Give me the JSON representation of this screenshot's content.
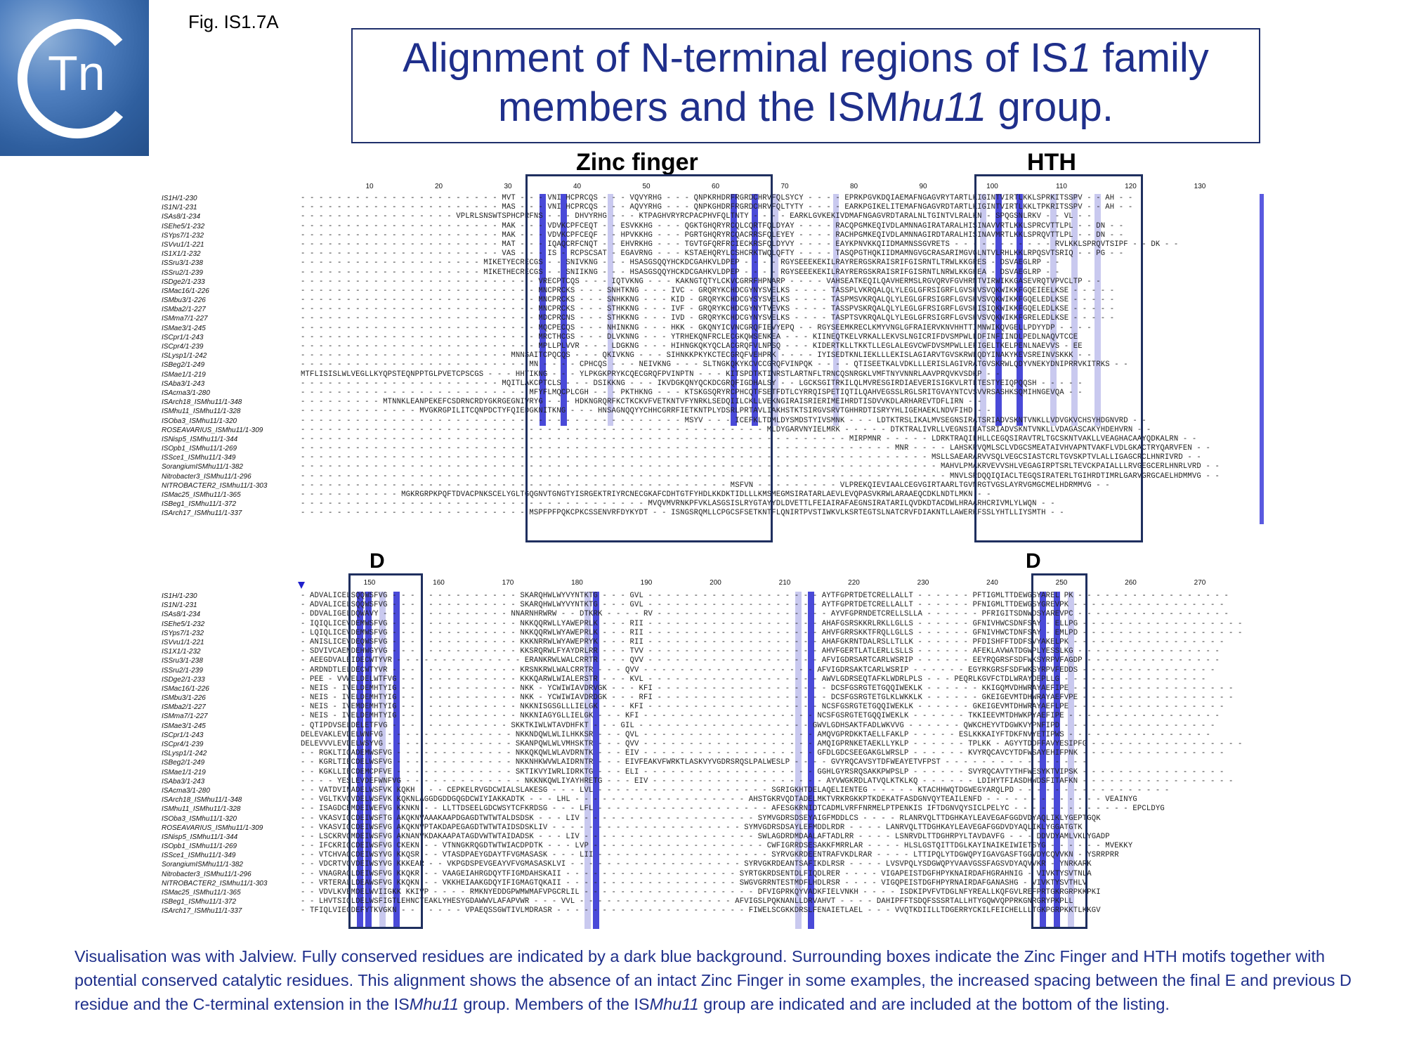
{
  "figure_label": "Fig. IS1.7A",
  "logo": {
    "text": "Tn",
    "colors": {
      "bg": "#4f7fbf",
      "ring": "#ffffff"
    }
  },
  "title": {
    "line1_a": "Alignment of N-terminal regions of IS",
    "line1_b": "1",
    "line1_c": " family",
    "line2_a": "members and the ISM",
    "line2_b": "hu11",
    "line2_c": " group."
  },
  "motifs": {
    "zinc_finger": "Zinc finger",
    "hth": "HTH",
    "d1": "D",
    "d2": "D"
  },
  "colors": {
    "box": "#1f2f5f",
    "title": "#1f2f8b",
    "conserved_dark": "#4a4ad8",
    "conserved_light": "#c9c9ef"
  },
  "top_block": {
    "ruler": [
      "10",
      "20",
      "30",
      "40",
      "50",
      "60",
      "70",
      "80",
      "90",
      "100",
      "110",
      "120",
      "130"
    ],
    "rows": [
      {
        "name": "IS1H/1-230",
        "seq": "- - - - - - - - - - - - - - - - - - - - - - MVT - - - VNI HCPRCQS - - - VQVYRHG - - - QNPKRHDRFRGRDCHRVFQLSYCY - - - - EPRKPGVKDQIAEMAFNGAGVRYTARTLKIGINTVIRTLKKLSPRKITSSPV - - AH - -"
      },
      {
        "name": "IS1N/1-231",
        "seq": "- - - - - - - - - - - - - - - - - - - - - - MAS - - - VNI HCPRCQS - - - AQVYRHG - - - QNPKGHDRFRGRDCHRVFQLTYTY - - - - EARKPGIKELITEMAFNGAGVRDTARTLKIGINTVIRTLKKLTPKRITSSPV - - AH - -"
      },
      {
        "name": "ISAs8/1-234",
        "seq": "- - - - - - - - - - - - - - - - - VPLRLSNSWTSPHCPRFNS - - - DHVYRHG - - - KTPAGHVRYRCPACPHVFQLTNTY - - - - EARKLGVKEKIVDMAFNGAGVRDTARALNLTGINTVLRALKN - SPQGSNLRKV - - VL - -"
      },
      {
        "name": "ISEhe5/1-232",
        "seq": "- - - - - - - - - - - - - - - - - - - - - - MAK - - - VDVKCPFCEQT - - ESVKKHG - - - QGKTGHQRYRCQLCQRTFQLDYAY - - - - RACQPGMKEQIVDLAMNNAGIRATARALHISINAVVRTLKKLSPRCVTTLPL - - DN - -"
      },
      {
        "name": "ISYps7/1-232",
        "seq": "- - - - - - - - - - - - - - - - - - - - - - MAK - - - VDVKCPFCEQF - - HPVKKHG - - - PGRTGHQRYRCQACRRSFQLEYEY - - - - RACHPGMKEQIVDLAMNNAGIRDTARALHISINAVMRTLKKLSPRQVTTLPL - - DN - -"
      },
      {
        "name": "ISVvu1/1-221",
        "seq": "- - - - - - - - - - - - - - - - - - - - - - MAT - - - IQAQCRFCNQT - - EHVRKHG - - - TGVTGFQRFRCIECKRSFQLDYVY - - - - EAYKPNVKKQIIDMAMNSSGVRETS - - - - - - - - - - - RVLKKLSPRQVTSIPF - - DK - -"
      },
      {
        "name": "IS1X1/1-232",
        "seq": "- - - - - - - - - - - - - - - - - - - - - - VAS - - - IS - RCPSCSAT - EGAVRNG - - - KSTAEHQRYLCSHCRKTWQLQFTY - - - - TASQPGTHQKIIDMAMNGVGCRASARIMGVGLNTVLRHLKKLRPQSVTSRIQ - - PG - -"
      },
      {
        "name": "ISSru3/1-238",
        "seq": "- - - - - - - - - - - - - - - - - - - - MIKETYECRECGS - - SNIVKNG - - - HSASGSQQYHCKDCGAHKVLDPEP - - - - RGYSEEEKEKILRAYRERGSKRAISRIFGISRNTLTRWLKKGRES - DSVAEGLRP - -"
      },
      {
        "name": "ISSru2/1-239",
        "seq": "- - - - - - - - - - - - - - - - - - - - MIKETHECRECGS - - SNIIKNG - - - HSASGSQQYHCKDCGAHKVLDPEP - - - - RGYSEEEKEKILRAYRERGSKRAISRIFGISRNTLNRWLKKGHEA - DSVAEGLRP - -"
      },
      {
        "name": "ISDge2/1-233",
        "seq": "- - - - - - - - - - - - - - - - - - - - - - - - - - VRECPTCQS - - - IQTVKNG - - - KAKNGTQTYLCKVCGRRFHPNARP - - - - VAHSEATKEQILQAVHERMSLRGVQRVFGVHRNTVIRWIKKGASEVRQTVPVCLTP - -"
      },
      {
        "name": "ISMac16/1-226",
        "seq": "- - - - - - - - - - - - - - - - - - - - - - - - - - MNCPRCKS - - - SNHTKNG - - - IVC - GRQRYKCHDCGYNYSVELKS - - - - TASSPLVKRQALQLYLEGLGFRSIGRFLGVSHVSVQKWIKKFGQEIEELKSE - - - - -"
      },
      {
        "name": "ISMbu3/1-226",
        "seq": "- - - - - - - - - - - - - - - - - - - - - - - - - - MNCPRCKS - - - SNHKKNG - - - KID - GRQRYKCHDCGYSYSVELKS - - - - TASPMSVKRQALQLYLEGLGFRSIGRFLGVSHVSVQKWIKKFGQELEDLKSE - - - - -"
      },
      {
        "name": "ISMba2/1-227",
        "seq": "- - - - - - - - - - - - - - - - - - - - - - - - - - MNCPRCKS - - - STHKKNG - - - IVF - GRQRYKCHDCGYNYTVEVKS - - - - TASSPVSKRQALQLYLEGLGFRSIGRFLGVSHISIQKWIKKFGQELEDLKSE - - - - -"
      },
      {
        "name": "ISMma7/1-227",
        "seq": "- - - - - - - - - - - - - - - - - - - - - - - - - - MDCPRCNS - - - STHKKNG - - - IVD - GRQRYKCHDCGYNYSVELKS - - - - TASPTSVKRQALQLYLEGLGFRSIGRFLGVSHVSVQKWIKKFGRELEDLKSE - - - - -"
      },
      {
        "name": "ISMae3/1-245",
        "seq": "- - - - - - - - - - - - - - - - - - - - - - - - - - MQCPECQS - - - NHINKNG - - - HKK - GKQNYICVNCGRQFIEVYEPQ - - RGYSEEMKRECLKMYVNGLGFRAIERVKNVHHTTIMNWIKQVGELLPDYYDP - - - -"
      },
      {
        "name": "ISCpr1/1-243",
        "seq": "- - - - - - - - - - - - - - - - - - - - - - - - - - MRCTHCGS - - - DLVKNNG - - - YTRHEKQNFRCLECGKQWSENKEA - - - KIINEQTKELVRKALLEKVSLNGICRIFDVSMPWLLDFINFIINDLPEDLNAQVTCCE"
      },
      {
        "name": "ISCpr4/1-239",
        "seq": "- - - - - - - - - - - - - - - - - - - - - - - - - - MPLLPLVVR - - - LDGKNG - - - HIHNGKQKYQCLACGRQFVLNPSQ - - - KIDERTKLLTKKTLLEGLALEGVCWFDVSMPWLLEFIGELTKELPENLNAEVVS - EE"
      },
      {
        "name": "ISLysp1/1-242",
        "seq": "- - - - - - - - - - - - - - - - - - - - - - - MNNSAITCPQCQS - - - QKIVKNG - - - SIHNKKPKYKCTECGRQFVEHPRK - - - - IYISEDTKNLIEKLLLEKISLAGIARVTGVSKRWLQDYINAKYKEVSREINVSKKK - -"
      },
      {
        "name": "ISBeg2/1-249",
        "seq": "- - - - - - - - - - - - - - - - - - - - - - - - - MN - - - - CPHCQS - - - NEIVKNG - - - SLTNGKQKYKCVCCGRQFVINPQK - - - - QTISEETKALVDKLLLERISLAGIVRATGVSKRWLQDYVNEKYDNIPRRVKITRKS - -"
      },
      {
        "name": "ISMae1/1-219",
        "seq": "MTFLISISLWLVEGLLKYQPSTEQNPPTGLPVETCPSCGS - - - HHTIKNG - - - YLPKGKPRYKCQECGRQFPVINPTN - - - KITSPDTKTINRSTLARTNFLTRNCQSNRGKLVMFTNYVNNRLAAVPRQVKVSDKP - -"
      },
      {
        "name": "ISAba3/1-243",
        "seq": "- - - - - - - - - - - - - - - - - - - - - - MQITLAKCPTCLS - - - DSIKKNG - - - IKVDGKQNYQCKDCGRQFIGDHALSY - - LGCKSGITRKILQLMVRESGIRDIAEVERISIGKVLRTLTESTYEIQPQQSH - - - - -"
      },
      {
        "name": "ISAcma3/1-280",
        "seq": "- - - - - - - - - - - - - - - - - - - - - - - - - MFYFLMQCPLCGH - - - PKTHKNG - - - KTSKGSQRYRCPHCQTFSETFDTLCYRRQISPETIQTILQAHVEGSSLRGLSRITGVAYNTCVSVVRSASHKSQMIHNGEVQA - -"
      },
      {
        "name": "ISArch18_ISMhu11/1-348",
        "seq": "- - - - - - - - - MTNNKLEANPEKEFCSDRNCRDYGKRGEGNIVRYG - - - HDKNGRQRFKCTKCKVFVETKNTVFYNRKLSEDQIILCKLLVEKNGIRAISRIERIMEIHRDTISDVVKDLARHAREVTDFLIRN - -"
      },
      {
        "name": "ISMhu11_ISMhu11/1-328",
        "seq": "- - - - - - - - - - - - - MVGKRGPILITCQNPDCTYFQIEDGKNITKNG - - - HNSAGNQQYYCHHCGRRFIETKNTPLYDSRLPRTAVLIAKHSTKTSIRGVSRVTGHHRDTISRYYHLIGEHAEKLNDVFIHD - -"
      },
      {
        "name": "ISOba3_ISMhu11/1-320",
        "seq": "- - - - - - - - - - - - - - - - - - - - - - - - - - - - - - - - - - - - - - - - - - MSYV - - - ICEFKLTDMLDYSMDSTYIVSMNK - - - LDTKTRSLIKALMVSEGNSIRATSRIADVSKNTVNKLLVDVGKVCHSYHDGNVRD - -"
      },
      {
        "name": "ROSEAVARIUS_ISMhu11/1-309",
        "seq": "- - - - - - - - - - - - - - - - - - - - - - - - - - - - - - - - - - - - - - - - - - - - - - - - - - - MLDYGARVNYIELMRK - - - - - DTKTRALIVRLLVEGNSIRATSRIADVSKNTVNKLLVDAGASCAKYHDEHVRN - -"
      },
      {
        "name": "ISNisp5_ISMhu11/1-344",
        "seq": "- - - - - - - - - - - - - - - - - - - - - - - - - - - - - - - - - - - - - - - - - - - - - - - - - - - - - - - - - - - - MIRPMNR - - - - - LDRKTRAQILHLLCEGQSIRAVTRLTGCSKNTVAKLLVEAGHACAAYQDKALRN - -"
      },
      {
        "name": "ISOpb1_ISMhu11/1-269",
        "seq": "- - - - - - - - - - - - - - - - - - - - - - - - - - - - - - - - - - - - - - - - - - - - - - - - - - - - - - - - - - - - - - - - - MNR - - - - LAHSKRVQMLSCLVDGCSMEATAIVHVAPNTVAKFLVDLGKACTRYQARVFEN - -"
      },
      {
        "name": "ISSce1_ISMhu11/1-349",
        "seq": "- - - - - - - - - - - - - - - - - - - - - - - - - - - - - - - - - - - - - - - - - - - - - - - - - - - - - - - - - - - - - - - - - - - - - MSLLSAEARARVVSQLVEGCSIASTCRLTGVSKPTVLALLIGAGCRCLHNRIVRD - -"
      },
      {
        "name": "SorangiumISMhu11/1-382",
        "seq": "- - - - - - - - - - - - - - - - - - - - - - - - - - - - - - - - - - - - - - - - - - - - - - - - - - - - - - - - - - - - - - - - - - - - - - MAHVLPMAKRVEVVSHLVEGAGIRPTSRLTEVCKPAIALLLRVGEGCERLHNRLVRD - -"
      },
      {
        "name": "Nitrobacter3_ISMhu11/1-296",
        "seq": "- - - - - - - - - - - - - - - - - - - - - - - - - - - - - - - - - - - - - - - - - - - - - - - - - - - - - - - - - - - - - - - - - - - - - - - MNVLSRDQQIQIACLTEGQSIRATERLTGIHRDTIMRLGARVGRGCAELHDMMVG - -"
      },
      {
        "name": "NITROBACTER2_ISMhu11/1-303",
        "seq": "- - - - - - - - - - - - - - - - - - - - - - - - - - - - - - - - - - - - - - - - - - - - - - - MSFVN - - - - - - - - - VLPREKQIEVIAALCEGVGIRTAARLTGVNRGTVGSLAYRVGMGCMELHDRMMVG - -"
      },
      {
        "name": "ISMac25_ISMhu11/1-365",
        "seq": "- - - - - - - - - - - MGKRGRPKPQFTDVACPNKSCELYGLTGQGNVTGNGTYISRGEKTRIYRCNECGKAFCDHTGTFYHDLKKDKTIDLLLKMSMEGMSIRATARLAEVLEVQPASVKRWLARAAEQCDKLNDTLMKN - -"
      },
      {
        "name": "ISBeg1_ISMhu11/1-372",
        "seq": "- - - - - - - - - - - - - - - - - - - - - - - - - - - - - - - - - - - - - - MVQVMVRNKPFVKLASGSISLRYGTAYYDLDVETTLFEIAIRAFAEGNSIRATARILQVDKDTACDWLHRAARHCRIVMLYLWQN - -"
      },
      {
        "name": "ISArch17_ISMhu11/1-337",
        "seq": "- - - - - - - - - - - - - - - - - - - - - - - - - MSPFPFPQKCPKCSSENVRFDYKYDT - - ISNGSRQMLLCPGCSFSETKNTFLQNIRTPVSTIWKVLKSRTEGTSLNATCRVFDIAKNTLLAWERKFSSLYHTLLIYSMTH - -"
      }
    ]
  },
  "bottom_block": {
    "ruler": [
      "150",
      "160",
      "170",
      "180",
      "190",
      "200",
      "210",
      "220",
      "230",
      "240",
      "250",
      "260",
      "270"
    ],
    "rows": [
      {
        "name": "IS1H/1-230",
        "seq": "- ADVALICELSQQWSFVG - - - - - - - - - - - - - - SKARQHWLWYVYNTKTG - - - GVL - - - - - - - - - - - - - - - - - - - AYTFGPRTDETCRELLALLT - - - - - - PFTIGMLTTDEWGSYAREL PK - - - - - - - - - - - - - - - - -"
      },
      {
        "name": "IS1N/1-231",
        "seq": "- ADVALICELSQQWSFVG - - - - - - - - - - - - - - SKARQHWLWYVYNTKTG - - - GVL - - - - - - - - - - - - - - - - - - - AYTFGPRTDETCRELLALLT - - - - - - PFNIGMLTTDEWGSYGREVPK - - - - - - - - - - - - - - - - -"
      },
      {
        "name": "ISAs8/1-234",
        "seq": "- DDVALIGELDQWAVY - - - - - - - - - - - - - - NNARNHRWRW - - DTKRK - - - - RV - - - - - - - - - - - - - - - - - - - AYVFGPRNDETCRELLSLLA - - - - - - PFRIGITSDNWDSYAREVPC - - - - - - - - - - - - - - - - -"
      },
      {
        "name": "ISEhe5/1-232",
        "seq": "- IQIQLICEVDEMWSFVG - - - - - - - - - - - - - - NKKQQRWLLYAWEPRLK - - - RII - - - - - - - - - - - - - - - - - - - AHAFGSRSKKRLRKLLGLLS - - - - - - GFNIVHWCSDNFSAY - ELLPG - - - - - - - - - - - - - - - - - -"
      },
      {
        "name": "ISYps7/1-232",
        "seq": "- LQIQLICEVDEMWSFVG - - - - - - - - - - - - - - NKKQQRWLWYAWEPRLK - - - RII - - - - - - - - - - - - - - - - - - - AHVFGRRSKKTFRQLLGLLS - - - - - - GFNIVHWCTDNFSAY - EMLPD - - - - - - - - - - - - - - - - - -"
      },
      {
        "name": "ISVvu1/1-221",
        "seq": "- ANISLICEVDEQWSFVG - - - - - - - - - - - - - - KKKNRRWLWYAWEPRYK - - - RII - - - - - - - - - - - - - - - - - - - AHAFGKRNTDALRSLLTLLK - - - - - - PFDISHFFTDDFSVYAKELPK - - - - - - - - - - - - - - - - -"
      },
      {
        "name": "IS1X1/1-232",
        "seq": "- SDVIVCAEMDEHWGYVG - - - - - - - - - - - - - - KKSRQRWLFYAYDRLRR - - - TVV - - - - - - - - - - - - - - - - - - - AHVFGERTLATLERLLSLLS - - - - - - AFEKLAVWATDGWPLYESSLKG - - - - - - - - - - - - - - - -"
      },
      {
        "name": "ISSru3/1-238",
        "seq": "- AEEGDVALEIDECWTYVR - - - - - - - - - - - - - - ERANKRWLWALCRRTR - - - QVV - - - - - - - - - - - - - - - - - - - AFVIGDRSARTCARLWSRIP - - - - - - EEYRQGRSFSDFWKSYRPVFAGDP - - - - - - - - - - - - - - -"
      },
      {
        "name": "ISSru2/1-239",
        "seq": "- ARDNDTLELDECWTYVR - - - - - - - - - - - - - - KRSNKRWLWALCRRTR - - - QVV - - - - - - - - - - - - - - - - - - - AFVIGDRSAKTCARLWSRIP - - - - - - EGYRKGRSFSDFWKSYRPVFEDDS - - - - - - - - - - - - - - -"
      },
      {
        "name": "ISDge2/1-233",
        "seq": "- PEE - VVWELDELWTFVG - - - - - - - - - - - - - KKKQARWLWIALERSTR - - - KVL - - - - - - - - - - - - - - - - - - - AWVLGDRSEQTAFKLWDRLPLS - - - PEQRLKGVFCTDLWRAYDEPLLG - - - - - - - - - - - - - - - -"
      },
      {
        "name": "ISMac16/1-226",
        "seq": "- NEIS - IVELDEMHTYIG - - - - - - - - - - - - - NKK - YCWIWIAVDRVGK - - - KFI - - - - - - - - - - - - - - - - - - - DCSFGSRGTETGQQIWEKLK - - - - - - KKIGQMVDHWRAYAEFIPE - - - - - - - - - - - - - - - - - -"
      },
      {
        "name": "ISMbu3/1-226",
        "seq": "- NEIS - IVELDEMHTYIG - - - - - - - - - - - - - NKK - YCWIWIAVDRDGK - - - RFI - - - - - - - - - - - - - - - - - - - DCSFGSRGTETGLKLWKKLK - - - - - - GKEIGEVMTDHWRAYAEFVPE - - - - - - - - - - - - - - - - -"
      },
      {
        "name": "ISMba2/1-227",
        "seq": "- NEIS - IVEMDEMHTYIG - - - - - - - - - - - - - NKKNISGSGLLLIELGK - - - KFI - - - - - - - - - - - - - - - - - - - NCSFGSRGTETGQQIWEKLK - - - - - - GKEIGEVMTDHWRAYAEFLPE - - - - - - - - - - - - - - - - -"
      },
      {
        "name": "ISMma7/1-227",
        "seq": "- NEIS - IVELDEMHTYIG - - - - - - - - - - - - - NKKNIAGYGLLIELGK - - - KFI - - - - - - - - - - - - - - - - - - - NCSFGSRGTETGQQIWEKLK - - - - - - TKKIEEVMTDHWKPYAEFIPE - - - - - - - - - - - - - - - - -"
      },
      {
        "name": "ISMae3/1-245",
        "seq": "- QTIPDVSELDELETFVG - - - - - - - - - - - - - SKKTKIWLWTAVDHFKT - - - GIL - - - - - - - - - - - - - - - - - - - GWVLGDHSAKTFADLWKVVG - - - - - - QWKCHEYVTDGWKVYPNFIPD - - - - - - - - - - - - - - - - -"
      },
      {
        "name": "ISCpr1/1-243",
        "seq": "DELEVAKLEVDELWNFVG - - - - - - - - - - - - - - NKKNDQWLWLILHKKSR - - - QVL - - - - - - - - - - - - - - - - - - - AMQVGPRDKKTAELLFAKLP - - - - - ESLKKKAIYFTDKFNVYETIPWS - - - - - - - - - - - - - - - -"
      },
      {
        "name": "ISCpr4/1-239",
        "seq": "DELEVVVLEVDELWSYVG - - - - - - - - - - - - - - SKANPQWLWLVMHSKTR - - - QVV - - - - - - - - - - - - - - - - - - - AMQIGPRNKETAEKLLYKLP - - - - - - TPLKK - AGYYTDDFFAVYESIPFG - - - - - - - - - - - - - - - - -"
      },
      {
        "name": "ISLysp1/1-242",
        "seq": "- - RGKLTIQADEMWSFVG - - - - - - - - - - - - - NKKQKQWLWLAVDRNTK - - - EIV - - - - - - - - - - - - - - - - - - - GFDLGDCSEEGAKGLWRSLP - - - - - - KVYRQCAVCYTDFWSAYEHIFPNK - - - - - - - - - - - - - - - -"
      },
      {
        "name": "ISBeg2/1-249",
        "seq": "- - KGRLTIECDELWSFVG - - - - - - - - - - - - - NKKNHKWVWLAIDRNTR - - - EIVFEAKVFWRKTLASKVYVGDRSRQSLPALWESLP - - - - GVYRQCAVSYTDFWEAYETVFPST - - - - - - - - - - - - - - - -"
      },
      {
        "name": "ISMae1/1-219",
        "seq": "- - KGKLLIECDEMCPFVE - - - - - - - - - - - - - SKTIKVYIWRLIDRKTG - - - ELI - - - - - - - - - - - - - - - - - - - GGHLGYRSRQSAKKPWPSLP - - - - - - SVYRQCAVTYTHFWESYKTVIPSK - - - - - - - - - - - - - - - -"
      },
      {
        "name": "ISAba3/1-243",
        "seq": "- - - - YESLEVDEFWNFVG - - - - - - - - - - - - - NKKNKQWLIYAYHRETG - - - EIV - - - - - - - - - - - - - - - - - - - AYVWGKRDLATVQLKTKLKQ - - - - - - LDIHYTFIASDHWDSFITAFKN - - - - - - - - - - - - - - - - -"
      },
      {
        "name": "ISAcma3/1-280",
        "seq": "- - VATDVINADELWSFVK KQKH - - - CEPKELRVGDCWIALSLAKESG - - - LVL - - - - - - - - - - - - - - - - - - - SGRIGKHTDELAQELIENTEG - - - - - KTACHHWQTDGWEGYARQLPD - - - - - - - - - - - - - - - - -"
      },
      {
        "name": "ISArch18_ISMhu11/1-348",
        "seq": "- - VGLTKVQVDELWSFVK KQKNLAGGDGDDGQGDCWIYIAKKADTK - - - LHL - - - - - - - - - - - - - - - - - - - AHSTGKRVQDTADELMKTVRKRGKKPTKDEKATFASDGNVQYTEAILENFD - - - - - - - - - - - - - VEAINYG"
      },
      {
        "name": "ISMhu11_ISMhu11/1-328",
        "seq": "- - ISAGDCEMDEIWEFVG KKNKN - - LLTTDSEELGDCWSYTCFKRDSG - - - LFL - - - - - - - - - - - - - - - - - - - AFESGKRNIDTCADMLVRFFNRMELPTPENKIS IFTDGNVQYSICLPELYC - - - - - - - - - - - - - EPCLDYG"
      },
      {
        "name": "ISOba3_ISMhu11/1-320",
        "seq": "- - VKASVIQCDEIWSFTG AKQKNVAAAKAAPDGAGDTWTWTALDSDSK - - - LIV - - - - - - - - - - - - - - - - - - - SYMVGDRSDSEYAIGFMDDLCS - - - - RLANRVQLTTDGHKAYLEAVEGAFGGDVDYAQLIKLYGEPTGQK"
      },
      {
        "name": "ROSEAVARIUS_ISMhu11/1-309",
        "seq": "- - VKASVIQCDEIWSFVG AKQKNVPTAKDAPEGAGDTWTWTAIDSDSKLIV - - - - - - - - - - - - - - - - - - - - - SYMVGDRSDSAYLEFMDDLRDR - - - - LANRVQLTTDGHKAYLEAVEGAFGGDVDYAQLIKLYGGATGTK"
      },
      {
        "name": "ISNisp5_ISMhu11/1-344",
        "seq": "- - LSCKRVQMDEIWSFVG AKNANVKDAKAAPATAGDVWTWTAIDADSK - - - LIV - - - - - - - - - - - - - - - - - - - SWLAGDRDMDAALAFTADLRR - - - - LSNRVDLTTDGHRPYLTAVDAVFG - - - DDVDYAMLVKLYGADP"
      },
      {
        "name": "ISOpb1_ISMhu11/1-269",
        "seq": "- - IFCKRIQCDEIWSFVG CKEKN - - VTNNGKRQGDTWTWIACDPDTK - - - LVP - - - - - - - - - - - - - - - - - - - CWFIGRRDSESAKKFMRRLAR - - - - HLSLGSTQITTDGLKAYINAIKEIWIETSYG - - - - - - MVEKKY"
      },
      {
        "name": "ISSce1_ISMhu11/1-349",
        "seq": "- - VTCHVAQCDEIWSYVG KKQSR - - VTASDPAEYGDAYTFVGMASASK - - - LII - - - - - - - - - - - - - - - - - - - SYRVGKRDEENTRAFVKDLRAR - - - - LTTIPQLYTDGWQPYIGAVGASFTGGVDYCQVVKN - YSRRPRR"
      },
      {
        "name": "SorangiumISMhu11/1-382",
        "seq": "- - VDCRTVQVDEIWSYVG KKKEAR - - VKPGDSPEVGEAYVFVGMASASKLVI - - - - - - - - - - - - - - - - - - - SYRVGKRDEANTSAFIKDLRSR - - - - LVSVPQLYSDGWQPYVAAVGSSFAGSVDYAQVVKR - YNRKARK"
      },
      {
        "name": "Nitrobacter3_ISMhu11/1-296",
        "seq": "- - VNAGRAQLDEIWSFVG KKQKR - - VAAGEIAHRGDQYTFIGMDAHSKAII - - - - - - - - - - - - - - - - - - - SYRTGKRDSENTDLFIQDLRER - - - - VIGAPEISTDGFHPYKNAIRDAFHGRAHNIG - VIVKTYSVTNLA"
      },
      {
        "name": "NITROBACTER2_ISMhu11/1-303",
        "seq": "- - VRTERALLDEAWSFVG KKQKN - - VKKHEIAAKGDQYIFIGMAGTQKAII - - - - - - - - - - - - - - - - - - - SWGVGRRNTESTMDFLHDLRSR - - - - VIGQPEISTDGFHPYRNAIRDAFGANASHG - VIVKTYSVTHLV"
      },
      {
        "name": "ISMac25_ISMhu11/1-365",
        "seq": "- - VDVLKVEMDELWVIIGKK KKIVP - - - - RMKNYEDDGPWMWMAFVPGCRLIL - - - - - - - - - - - - - - - - - - - DFVIGPRKQYVADKFIELVNKH - - - - ISDKIPVFVTDGLNFYREALLKQFGVLREFPRTGKRGRPKKPKI"
      },
      {
        "name": "ISBeg1_ISMhu11/1-372",
        "seq": "- - LHVTSIQLDELWSFIGTLEHNCTEAKLYHESYGDAWWVLAFAPVWR - - - VVL - - - - - - - - - - - - - - - - - AFVIGSLPQKNANLLDRVAHVT - - - - DAHIPFFTSDQFSSSRTALLHTYGQWVQPPRKGNRGRYPKPLL"
      },
      {
        "name": "ISArch17_ISMhu11/1-337",
        "seq": "- TFIQLVIEGDEFYTKVGKN - - - - - - - VPAEQSSGWTIVLMDRASR - - - - - - - - - - - - - - - - - - - - - FIWELSCGKKDRSLFENAIETLAEL - - - VVQTKDIILLTDGERRYCKILFEICHELLLTGKPGRPKKTLKKGV"
      }
    ]
  },
  "caption": {
    "part1": "Visualisation was with Jalview. Fully conserved residues are indicated by a dark blue background. Surrounding boxes indicate the Zinc Finger and HTH motifs together with potential conserved catalytic residues. This alignment shows the absence of an intact Zinc Finger in some examples, the increased spacing between the final E and previous D residue and the C-terminal extension in the IS",
    "part2": "Mhu11",
    "part3": " group. Members of the IS",
    "part4": "Mhu11",
    "part5": " group are indicated and are included at the bottom of the listing."
  }
}
